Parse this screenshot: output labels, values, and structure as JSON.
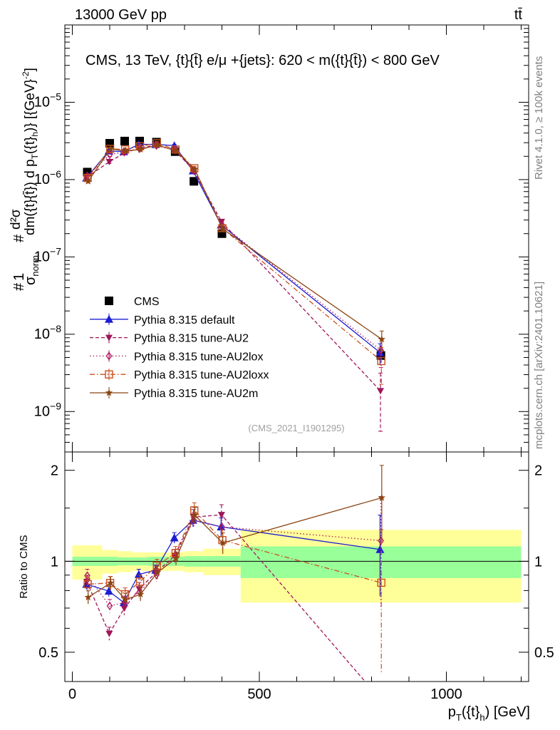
{
  "header": {
    "left": "13000 GeV pp",
    "right": "tt̄"
  },
  "side": {
    "rivet": "Rivet 4.1.0, ≥ 100k events",
    "mcplots": "mcplots.cern.ch [arXiv:2401.10621]"
  },
  "chart_data": {
    "type": "scatter",
    "title": "CMS, 13 TeV, {t}{t̄} e/μ +{jets}: 620 < m({t}{t̄}) < 800 GeV",
    "analysis_id": "(CMS_2021_I1901295)",
    "xlabel": "p_T({t}_h) [GeV]",
    "xlabel_main": "p",
    "xlabel_sub": "T",
    "xlabel_mid": "({t}",
    "xlabel_sub2": "h",
    "xlabel_tail": ") [GeV]",
    "ylabel": "#1/σ_norm #d²σ/dm({t}{t̄}) d p_T({t}_h) [{GeV}^-2]",
    "ylabel_parts": {
      "one": "1",
      "sigma": "σ",
      "norm_sub": "norm",
      "frac_num": "d²σ",
      "frac_den": "dm({t}{t̄}) d p",
      "den_sub": "T",
      "den_tail": "({t}",
      "den_sub2": "h",
      "units": ")} [{GeV}",
      "units_sup": "-2",
      "units_end": "]",
      "hash": "#"
    },
    "xlim": [
      -20,
      1220
    ],
    "ylim_main": [
      3e-10,
      0.0001
    ],
    "ylim_ratio": [
      0.4,
      2.3
    ],
    "main_yticks": [
      {
        "v": 1e-09,
        "m": "10",
        "e": "−9"
      },
      {
        "v": 1e-08,
        "m": "10",
        "e": "−8"
      },
      {
        "v": 1e-07,
        "m": "10",
        "e": "−7"
      },
      {
        "v": 1e-06,
        "m": "10",
        "e": "−6"
      },
      {
        "v": 1e-05,
        "m": "10",
        "e": "−5"
      }
    ],
    "xticks": [
      {
        "v": 0,
        "label": "0"
      },
      {
        "v": 500,
        "label": "500"
      },
      {
        "v": 1000,
        "label": "1000"
      }
    ],
    "ratio_ylabel": "Ratio to CMS",
    "ratio_yticks": [
      {
        "v": 0.5,
        "label": "0.5"
      },
      {
        "v": 1,
        "label": "1"
      },
      {
        "v": 2,
        "label": "2"
      }
    ],
    "bins": [
      {
        "lo": 0,
        "hi": 80,
        "x": 40
      },
      {
        "lo": 80,
        "hi": 120,
        "x": 100
      },
      {
        "lo": 120,
        "hi": 160,
        "x": 140
      },
      {
        "lo": 160,
        "hi": 200,
        "x": 180
      },
      {
        "lo": 200,
        "hi": 250,
        "x": 225
      },
      {
        "lo": 250,
        "hi": 300,
        "x": 275
      },
      {
        "lo": 300,
        "hi": 350,
        "x": 325
      },
      {
        "lo": 350,
        "hi": 450,
        "x": 400
      },
      {
        "lo": 450,
        "hi": 1200,
        "x": 825
      }
    ],
    "data": {
      "name": "CMS",
      "color": "#000000",
      "values": [
        1.25e-06,
        2.95e-06,
        3.15e-06,
        3.15e-06,
        3.05e-06,
        2.3e-06,
        9.5e-07,
        2e-07,
        5.3e-09
      ],
      "band_stat": [
        0.035,
        0.035,
        0.03,
        0.03,
        0.035,
        0.035,
        0.04,
        0.04,
        0.12
      ],
      "band_tot": [
        0.13,
        0.09,
        0.08,
        0.07,
        0.07,
        0.07,
        0.08,
        0.1,
        0.27
      ]
    },
    "series": [
      {
        "name": "Pythia 8.315 default",
        "color": "#1d1dd1",
        "marker": "triangle-up",
        "dash": "solid",
        "values": [
          1.05e-06,
          2.35e-06,
          2.3e-06,
          2.85e-06,
          2.85e-06,
          2.75e-06,
          1.3e-06,
          2.6e-07,
          5.8e-09
        ],
        "errors": [
          0.04,
          0.04,
          0.04,
          0.04,
          0.04,
          0.04,
          0.05,
          0.07,
          0.3
        ]
      },
      {
        "name": "Pythia 8.315 tune-AU2",
        "color": "#a0155a",
        "marker": "triangle-down",
        "dash": "5,3",
        "values": [
          1.07e-06,
          1.7e-06,
          2.2e-06,
          2.55e-06,
          2.8e-06,
          2.4e-06,
          1.33e-06,
          2.85e-07,
          1.85e-09
        ],
        "errors": [
          0.05,
          0.05,
          0.05,
          0.05,
          0.05,
          0.05,
          0.06,
          0.08,
          0.7
        ]
      },
      {
        "name": "Pythia 8.315 tune-AU2lox",
        "color": "#b0185c",
        "marker": "diamond-open",
        "dash": "1.5,3",
        "values": [
          1.12e-06,
          2.1e-06,
          2.3e-06,
          2.5e-06,
          2.75e-06,
          2.4e-06,
          1.3e-06,
          2.6e-07,
          6.2e-09
        ],
        "errors": [
          0.05,
          0.05,
          0.05,
          0.05,
          0.05,
          0.05,
          0.06,
          0.08,
          0.4
        ]
      },
      {
        "name": "Pythia 8.315 tune-AU2loxx",
        "color": "#c9501c",
        "marker": "square-open",
        "dash": "7,3,1.5,3",
        "values": [
          1.05e-06,
          2.5e-06,
          2.45e-06,
          2.7e-06,
          2.95e-06,
          2.45e-06,
          1.4e-06,
          2.35e-07,
          4.5e-09
        ],
        "errors": [
          0.05,
          0.05,
          0.05,
          0.05,
          0.05,
          0.05,
          0.06,
          0.08,
          0.5
        ]
      },
      {
        "name": "Pythia 8.315 tune-AU2m",
        "color": "#8b4513",
        "marker": "star",
        "dash": "solid",
        "values": [
          9.5e-07,
          2.5e-06,
          2.35e-06,
          2.45e-06,
          2.8e-06,
          2.35e-06,
          1.35e-06,
          2.3e-07,
          8.6e-09
        ],
        "errors": [
          0.05,
          0.05,
          0.05,
          0.05,
          0.05,
          0.05,
          0.06,
          0.08,
          0.28
        ]
      }
    ]
  }
}
